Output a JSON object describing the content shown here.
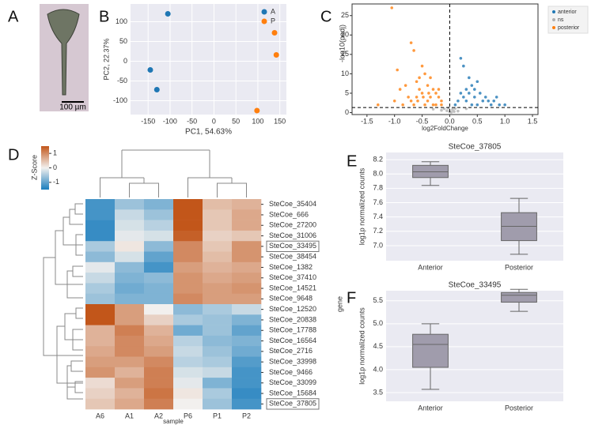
{
  "image_panel": {
    "panel_label": "A",
    "scale_bar": "100 µm"
  },
  "chart_data": [
    {
      "type": "scatter",
      "panel_label": "B",
      "xlabel": "PC1, 54.63%",
      "ylabel": "PC2, 22.37%",
      "xlim": [
        -190,
        165
      ],
      "ylim": [
        -135,
        145
      ],
      "xticks": [
        -150,
        -100,
        -50,
        0,
        50,
        100,
        150
      ],
      "yticks": [
        -100,
        -50,
        0,
        50,
        100
      ],
      "background": "#eaeaf2",
      "legend": "top-right",
      "series": [
        {
          "name": "A",
          "color": "#1f77b4",
          "x": [
            -105,
            -145,
            -130
          ],
          "values": [
            120,
            -22,
            -72
          ]
        },
        {
          "name": "P",
          "color": "#ff7f0e",
          "x": [
            138,
            142,
            98
          ],
          "values": [
            72,
            16,
            -125
          ]
        }
      ]
    },
    {
      "type": "volcano",
      "panel_label": "C",
      "xlabel": "log2FoldChange",
      "ylabel": "-log10(padj)",
      "xlim": [
        -1.77,
        1.6
      ],
      "ylim": [
        -0.5,
        28
      ],
      "xticks": [
        -1.5,
        {
          "value": -1,
          "label": "-1.0"
        },
        -0.5,
        {
          "value": 0,
          "label": "0.0"
        },
        0.5,
        {
          "value": 1,
          "label": "1.0"
        },
        1.5
      ],
      "yticks": [
        0,
        5,
        10,
        15,
        20,
        25
      ],
      "hline": 1.3,
      "vline": 0,
      "legend": "outside-right",
      "series": [
        {
          "name": "anterior",
          "color": "#1f77b4",
          "x": [
            0.2,
            0.25,
            0.5,
            0.85,
            1.0,
            0.3,
            0.35,
            0.4,
            0.45,
            0.55,
            0.6,
            0.65,
            0.7,
            0.75,
            0.15,
            0.1,
            0.3,
            0.4,
            0.5,
            0.2,
            0.9,
            0.8,
            0.35,
            0.45,
            0.25
          ],
          "values": [
            14,
            12,
            8,
            4,
            2,
            6,
            5,
            7,
            4,
            5,
            3,
            4,
            3,
            2,
            3,
            2,
            3,
            2,
            2,
            5,
            2,
            3,
            9,
            6,
            4
          ]
        },
        {
          "name": "ns",
          "color": "#b0b0b0",
          "x": [
            -0.1,
            -0.05,
            0,
            0.05,
            0.1,
            -0.15,
            0.15,
            -0.02,
            0.03,
            -0.3,
            0.3,
            0.08
          ],
          "values": [
            1,
            0.5,
            0.2,
            0.8,
            1.1,
            0.6,
            0.4,
            1.2,
            0.1,
            0.9,
            1.0,
            0.3
          ]
        },
        {
          "name": "posterior",
          "color": "#ff7f0e",
          "x": [
            -1.05,
            -0.7,
            -0.65,
            -0.95,
            -0.5,
            -0.55,
            -0.8,
            -0.9,
            -0.6,
            -0.45,
            -0.4,
            -0.35,
            -0.3,
            -0.25,
            -0.2,
            -0.15,
            -0.5,
            -0.6,
            -0.7,
            -0.4,
            -0.3,
            -0.45,
            -0.55,
            -0.35,
            -0.25,
            -0.65,
            -0.75,
            -1.3,
            -1.0,
            -0.85,
            -0.2,
            -0.15,
            -0.38,
            -0.48,
            -0.58
          ],
          "values": [
            27,
            18,
            16,
            11,
            12,
            9,
            7,
            6,
            8,
            10,
            7,
            9,
            6,
            5,
            4,
            3,
            5,
            4,
            3,
            3,
            2,
            2,
            6,
            4,
            2,
            2,
            4,
            2,
            3,
            2,
            6,
            2,
            5,
            4,
            3
          ]
        }
      ]
    },
    {
      "type": "heatmap",
      "panel_label": "D",
      "xlabel": "sample",
      "ylabel": "gene",
      "columns": [
        "A6",
        "A1",
        "A2",
        "P6",
        "P1",
        "P2"
      ],
      "rows": [
        "SteCoe_35404",
        "SteCoe_666",
        "SteCoe_27200",
        "SteCoe_31006",
        "SteCoe_33495",
        "SteCoe_38454",
        "SteCoe_1382",
        "SteCoe_37410",
        "SteCoe_14521",
        "SteCoe_9648",
        "SteCoe_12520",
        "SteCoe_20838",
        "SteCoe_17788",
        "SteCoe_16564",
        "SteCoe_2716",
        "SteCoe_33998",
        "SteCoe_9466",
        "SteCoe_33099",
        "SteCoe_15684",
        "SteCoe_37805"
      ],
      "values": [
        [
          -1.2,
          -0.6,
          -0.8,
          1.5,
          0.5,
          0.6
        ],
        [
          -1.2,
          -0.3,
          -0.6,
          1.5,
          0.4,
          0.7
        ],
        [
          -1.3,
          -0.2,
          -0.4,
          1.5,
          0.4,
          0.7
        ],
        [
          -1.3,
          -0.1,
          -0.2,
          1.4,
          0.3,
          0.4
        ],
        [
          -0.5,
          0.1,
          -0.7,
          1.0,
          0.4,
          0.9
        ],
        [
          -0.7,
          -0.2,
          -1.0,
          1.0,
          0.5,
          0.9
        ],
        [
          -0.1,
          -0.7,
          -1.2,
          0.8,
          0.6,
          0.7
        ],
        [
          -0.3,
          -0.8,
          -0.7,
          0.9,
          0.7,
          0.8
        ],
        [
          -0.5,
          -0.9,
          -0.8,
          0.9,
          0.8,
          0.9
        ],
        [
          -0.6,
          -0.8,
          -0.8,
          1.0,
          0.8,
          0.8
        ],
        [
          1.5,
          0.8,
          0.0,
          -0.7,
          -0.5,
          -0.3
        ],
        [
          1.5,
          0.8,
          0.3,
          -0.5,
          -0.6,
          -0.8
        ],
        [
          0.6,
          1.1,
          0.6,
          -0.9,
          -0.6,
          -1.0
        ],
        [
          0.6,
          1.0,
          0.7,
          -0.4,
          -0.7,
          -0.8
        ],
        [
          0.7,
          1.0,
          0.8,
          -0.3,
          -0.6,
          -0.9
        ],
        [
          0.8,
          0.8,
          1.0,
          -0.4,
          -0.5,
          -1.1
        ],
        [
          0.9,
          0.6,
          1.1,
          -0.2,
          -0.3,
          -1.2
        ],
        [
          0.2,
          0.8,
          1.1,
          -0.1,
          -0.8,
          -1.2
        ],
        [
          0.3,
          0.6,
          1.2,
          0.1,
          -0.5,
          -1.3
        ],
        [
          0.4,
          0.7,
          1.1,
          0.0,
          -0.6,
          -1.2
        ]
      ],
      "clim": [
        -1.5,
        1.5
      ],
      "colorbar": {
        "label": "Z-Score",
        "ticks": [
          1,
          0,
          -1
        ]
      }
    },
    {
      "type": "box",
      "panel_label": "E",
      "title": "SteCoe_37805",
      "ylabel": "log1p normalized counts",
      "categories": [
        "Anterior",
        "Posterior"
      ],
      "ylim": [
        6.79,
        8.3
      ],
      "yticks": [
        {
          "value": 7,
          "label": "7.0"
        },
        7.2,
        7.4,
        7.6,
        7.8,
        {
          "value": 8,
          "label": "8.0"
        },
        8.2
      ],
      "color": "#a09cac",
      "background": "#eaeaf2",
      "stats": [
        {
          "min": 7.84,
          "q1": 7.95,
          "median": 8.03,
          "q3": 8.12,
          "max": 8.17
        },
        {
          "min": 6.88,
          "q1": 7.07,
          "median": 7.27,
          "q3": 7.46,
          "max": 7.66
        }
      ]
    },
    {
      "type": "box",
      "panel_label": "F",
      "title": "SteCoe_33495",
      "ylabel": "log1p normalized counts",
      "categories": [
        "Anterior",
        "Posterior"
      ],
      "ylim": [
        3.31,
        5.72
      ],
      "yticks": [
        3.5,
        {
          "value": 4,
          "label": "4.0"
        },
        4.5,
        {
          "value": 5,
          "label": "5.0"
        },
        5.5
      ],
      "color": "#a09cac",
      "background": "#eaeaf2",
      "stats": [
        {
          "min": 3.57,
          "q1": 4.05,
          "median": 4.55,
          "q3": 4.77,
          "max": 5.0
        },
        {
          "min": 5.27,
          "q1": 5.47,
          "median": 5.62,
          "q3": 5.68,
          "max": 5.75
        }
      ]
    }
  ]
}
